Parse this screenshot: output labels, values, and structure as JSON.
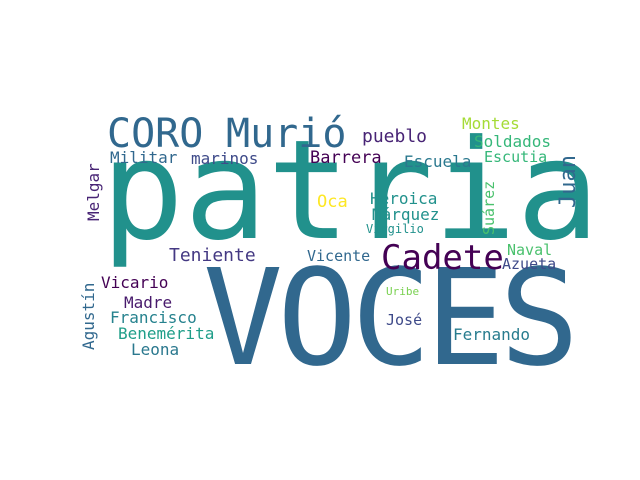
{
  "word_cloud": {
    "background": "#ffffff",
    "words": [
      {
        "text": "patria",
        "color": "#21918c"
      },
      {
        "text": "VOCES",
        "color": "#31688e"
      },
      {
        "text": "CORO",
        "color": "#31688e"
      },
      {
        "text": "Murió",
        "color": "#31688e"
      },
      {
        "text": "Cadete",
        "color": "#440154"
      },
      {
        "text": "pueblo",
        "color": "#482475"
      },
      {
        "text": "Montes",
        "color": "#a5db36"
      },
      {
        "text": "Soldados",
        "color": "#35b779"
      },
      {
        "text": "Escutia",
        "color": "#35b779"
      },
      {
        "text": "Juan",
        "color": "#31688e"
      },
      {
        "text": "Militar",
        "color": "#31688e"
      },
      {
        "text": "marinos",
        "color": "#3e4a89"
      },
      {
        "text": "Barrera",
        "color": "#440154"
      },
      {
        "text": "Escuela",
        "color": "#2a788e"
      },
      {
        "text": "Melgar",
        "color": "#482475"
      },
      {
        "text": "Heroica",
        "color": "#21918c"
      },
      {
        "text": "Oca",
        "color": "#fde725"
      },
      {
        "text": "Márquez",
        "color": "#21918c"
      },
      {
        "text": "Suárez",
        "color": "#4ac16d"
      },
      {
        "text": "Virgilio",
        "color": "#21918c"
      },
      {
        "text": "Teniente",
        "color": "#443983"
      },
      {
        "text": "Vicente",
        "color": "#31688e"
      },
      {
        "text": "Naval",
        "color": "#4ac16d"
      },
      {
        "text": "Azueta",
        "color": "#3e4a89"
      },
      {
        "text": "Vicario",
        "color": "#440154"
      },
      {
        "text": "Uribe",
        "color": "#7ad151"
      },
      {
        "text": "Agustín",
        "color": "#31688e"
      },
      {
        "text": "Madre",
        "color": "#481a6c"
      },
      {
        "text": "Francisco",
        "color": "#26828e"
      },
      {
        "text": "José",
        "color": "#3e4a89"
      },
      {
        "text": "Benemérita",
        "color": "#1f9e89"
      },
      {
        "text": "Fernando",
        "color": "#287c8e"
      },
      {
        "text": "Leona",
        "color": "#2a788e"
      }
    ]
  }
}
